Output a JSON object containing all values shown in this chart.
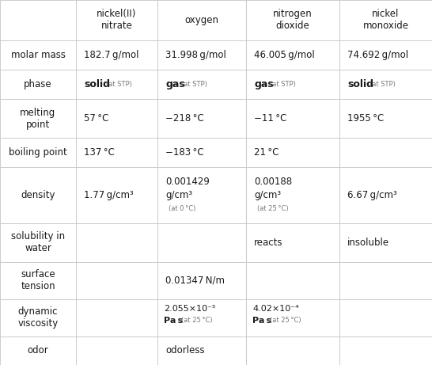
{
  "col_headers": [
    "",
    "nickel(II)\nnitrate",
    "oxygen",
    "nitrogen\ndioxide",
    "nickel\nmonoxide"
  ],
  "rows": [
    {
      "label": "molar mass",
      "cells": [
        {
          "main": "182.7 g/mol",
          "sub_note": "",
          "bold_main": false
        },
        {
          "main": "31.998 g/mol",
          "sub_note": "",
          "bold_main": false
        },
        {
          "main": "46.005 g/mol",
          "sub_note": "",
          "bold_main": false
        },
        {
          "main": "74.692 g/mol",
          "sub_note": "",
          "bold_main": false
        }
      ]
    },
    {
      "label": "phase",
      "cells": [
        {
          "main": "solid",
          "sub_note": "at STP",
          "bold_main": true
        },
        {
          "main": "gas",
          "sub_note": "at STP",
          "bold_main": true
        },
        {
          "main": "gas",
          "sub_note": "at STP",
          "bold_main": true
        },
        {
          "main": "solid",
          "sub_note": "at STP",
          "bold_main": true
        }
      ]
    },
    {
      "label": "melting\npoint",
      "cells": [
        {
          "main": "57 °C",
          "sub_note": "",
          "bold_main": false
        },
        {
          "main": "−218 °C",
          "sub_note": "",
          "bold_main": false
        },
        {
          "main": "−11 °C",
          "sub_note": "",
          "bold_main": false
        },
        {
          "main": "1955 °C",
          "sub_note": "",
          "bold_main": false
        }
      ]
    },
    {
      "label": "boiling point",
      "cells": [
        {
          "main": "137 °C",
          "sub_note": "",
          "bold_main": false
        },
        {
          "main": "−183 °C",
          "sub_note": "",
          "bold_main": false
        },
        {
          "main": "21 °C",
          "sub_note": "",
          "bold_main": false
        },
        {
          "main": "",
          "sub_note": "",
          "bold_main": false
        }
      ]
    },
    {
      "label": "density",
      "cells": [
        {
          "main": "1.77 g/cm³",
          "sub_note": "",
          "bold_main": false
        },
        {
          "main": "0.001429\ng/cm³",
          "sub_note": "at 0 °C",
          "bold_main": false
        },
        {
          "main": "0.00188\ng/cm³",
          "sub_note": "at 25 °C",
          "bold_main": false
        },
        {
          "main": "6.67 g/cm³",
          "sub_note": "",
          "bold_main": false
        }
      ]
    },
    {
      "label": "solubility in\nwater",
      "cells": [
        {
          "main": "",
          "sub_note": "",
          "bold_main": false
        },
        {
          "main": "",
          "sub_note": "",
          "bold_main": false
        },
        {
          "main": "reacts",
          "sub_note": "",
          "bold_main": false
        },
        {
          "main": "insoluble",
          "sub_note": "",
          "bold_main": false
        }
      ]
    },
    {
      "label": "surface\ntension",
      "cells": [
        {
          "main": "",
          "sub_note": "",
          "bold_main": false
        },
        {
          "main": "0.01347 N/m",
          "sub_note": "",
          "bold_main": false
        },
        {
          "main": "",
          "sub_note": "",
          "bold_main": false
        },
        {
          "main": "",
          "sub_note": "",
          "bold_main": false
        }
      ]
    },
    {
      "label": "dynamic\nviscosity",
      "cells": [
        {
          "main": "",
          "sub_note": "",
          "bold_main": false
        },
        {
          "main": "2.055×10⁻⁵",
          "pas": "Pa s",
          "sub_note": "at 25 °C",
          "bold_main": false
        },
        {
          "main": "4.02×10⁻⁴",
          "pas": "Pa s",
          "sub_note": "at 25 °C",
          "bold_main": false
        },
        {
          "main": "",
          "sub_note": "",
          "bold_main": false
        }
      ]
    },
    {
      "label": "odor",
      "cells": [
        {
          "main": "",
          "sub_note": "",
          "bold_main": false
        },
        {
          "main": "odorless",
          "sub_note": "",
          "bold_main": false
        },
        {
          "main": "",
          "sub_note": "",
          "bold_main": false
        },
        {
          "main": "",
          "sub_note": "",
          "bold_main": false
        }
      ]
    }
  ],
  "bg_color": "#ffffff",
  "line_color": "#cccccc",
  "text_color": "#1a1a1a",
  "small_text_color": "#777777",
  "main_fontsize": 8.5,
  "small_fontsize": 6.0,
  "header_fontsize": 8.5
}
